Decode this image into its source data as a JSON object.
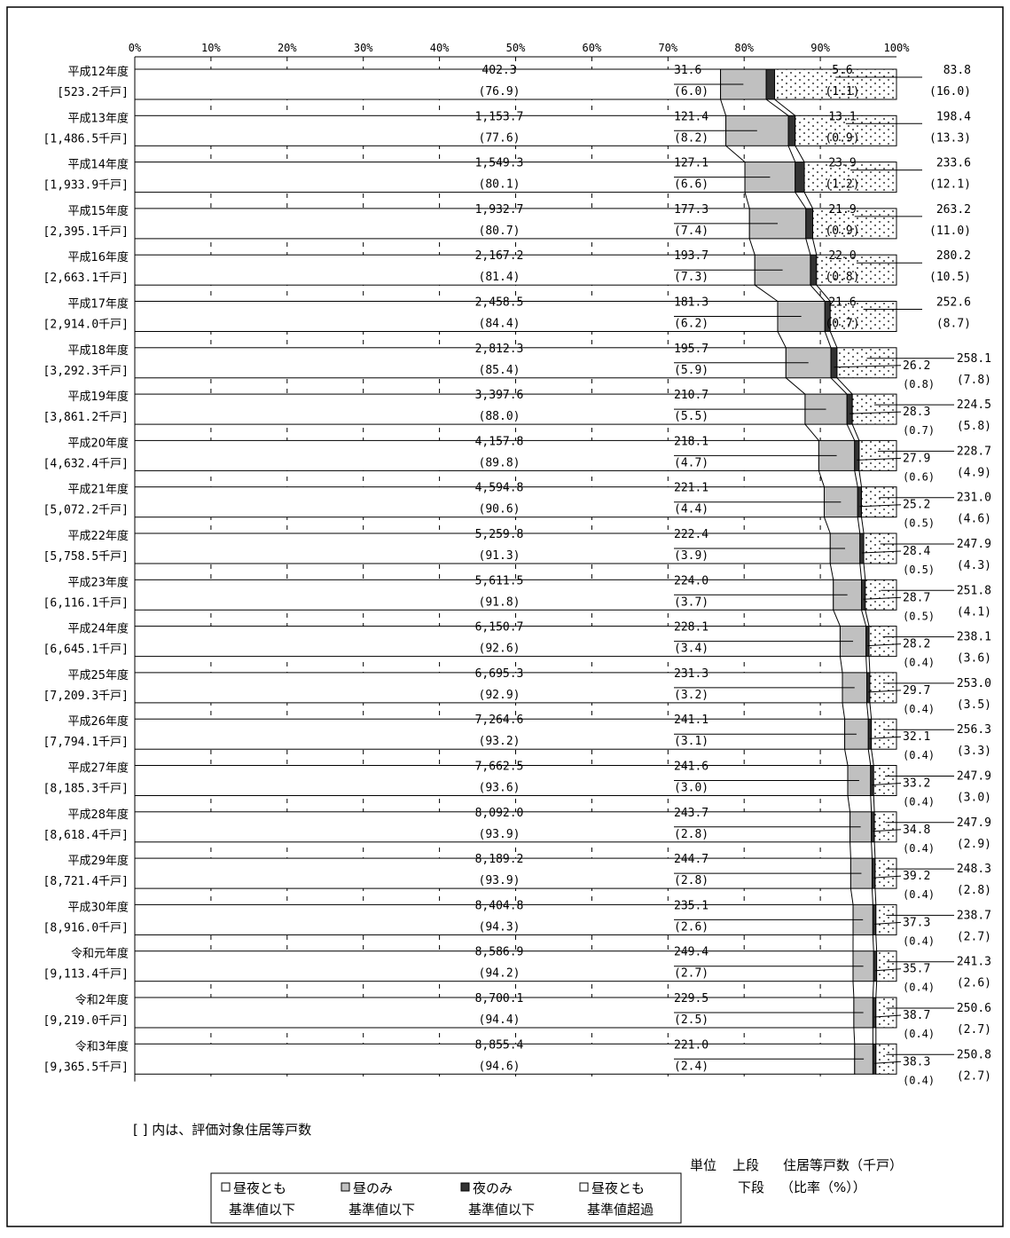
{
  "chart_data": {
    "type": "bar",
    "subtype": "stacked-horizontal-100-percent",
    "x_ticks": [
      "0%",
      "10%",
      "20%",
      "30%",
      "40%",
      "50%",
      "60%",
      "70%",
      "80%",
      "90%",
      "100%"
    ],
    "xlim": [
      0,
      100
    ],
    "series": [
      {
        "name": "昼夜とも基準値以下",
        "legend_line1": "昼夜とも",
        "legend_line2": "基準値以下",
        "fill": "#ffffff",
        "pattern": "none"
      },
      {
        "name": "昼のみ基準値以下",
        "legend_line1": "昼のみ",
        "legend_line2": "基準値以下",
        "fill": "#c0c0c0",
        "pattern": "none"
      },
      {
        "name": "夜のみ基準値以下",
        "legend_line1": "夜のみ",
        "legend_line2": "基準値以下",
        "fill": "#333333",
        "pattern": "none"
      },
      {
        "name": "昼夜とも基準値超過",
        "legend_line1": "昼夜とも",
        "legend_line2": "基準値超過",
        "fill": "#ffffff",
        "pattern": "dots"
      }
    ],
    "categories": [
      {
        "year": "平成12年度",
        "total": "[523.2千戸]",
        "values": [
          "402.3",
          "31.6",
          "5.6",
          "83.8"
        ],
        "pcts": [
          "(76.9)",
          "(6.0)",
          "(1.1)",
          "(16.0)"
        ]
      },
      {
        "year": "平成13年度",
        "total": "[1,486.5千戸]",
        "values": [
          "1,153.7",
          "121.4",
          "13.1",
          "198.4"
        ],
        "pcts": [
          "(77.6)",
          "(8.2)",
          "(0.9)",
          "(13.3)"
        ]
      },
      {
        "year": "平成14年度",
        "total": "[1,933.9千戸]",
        "values": [
          "1,549.3",
          "127.1",
          "23.9",
          "233.6"
        ],
        "pcts": [
          "(80.1)",
          "(6.6)",
          "(1.2)",
          "(12.1)"
        ]
      },
      {
        "year": "平成15年度",
        "total": "[2,395.1千戸]",
        "values": [
          "1,932.7",
          "177.3",
          "21.9",
          "263.2"
        ],
        "pcts": [
          "(80.7)",
          "(7.4)",
          "(0.9)",
          "(11.0)"
        ]
      },
      {
        "year": "平成16年度",
        "total": "[2,663.1千戸]",
        "values": [
          "2,167.2",
          "193.7",
          "22.0",
          "280.2"
        ],
        "pcts": [
          "(81.4)",
          "(7.3)",
          "(0.8)",
          "(10.5)"
        ]
      },
      {
        "year": "平成17年度",
        "total": "[2,914.0千戸]",
        "values": [
          "2,458.5",
          "181.3",
          "21.6",
          "252.6"
        ],
        "pcts": [
          "(84.4)",
          "(6.2)",
          "(0.7)",
          "(8.7)"
        ]
      },
      {
        "year": "平成18年度",
        "total": "[3,292.3千戸]",
        "values": [
          "2,812.3",
          "195.7",
          "26.2",
          "258.1"
        ],
        "pcts": [
          "(85.4)",
          "(5.9)",
          "(0.8)",
          "(7.8)"
        ]
      },
      {
        "year": "平成19年度",
        "total": "[3,861.2千戸]",
        "values": [
          "3,397.6",
          "210.7",
          "28.3",
          "224.5"
        ],
        "pcts": [
          "(88.0)",
          "(5.5)",
          "(0.7)",
          "(5.8)"
        ]
      },
      {
        "year": "平成20年度",
        "total": "[4,632.4千戸]",
        "values": [
          "4,157.8",
          "218.1",
          "27.9",
          "228.7"
        ],
        "pcts": [
          "(89.8)",
          "(4.7)",
          "(0.6)",
          "(4.9)"
        ]
      },
      {
        "year": "平成21年度",
        "total": "[5,072.2千戸]",
        "values": [
          "4,594.8",
          "221.1",
          "25.2",
          "231.0"
        ],
        "pcts": [
          "(90.6)",
          "(4.4)",
          "(0.5)",
          "(4.6)"
        ]
      },
      {
        "year": "平成22年度",
        "total": "[5,758.5千戸]",
        "values": [
          "5,259.8",
          "222.4",
          "28.4",
          "247.9"
        ],
        "pcts": [
          "(91.3)",
          "(3.9)",
          "(0.5)",
          "(4.3)"
        ]
      },
      {
        "year": "平成23年度",
        "total": "[6,116.1千戸]",
        "values": [
          "5,611.5",
          "224.0",
          "28.7",
          "251.8"
        ],
        "pcts": [
          "(91.8)",
          "(3.7)",
          "(0.5)",
          "(4.1)"
        ]
      },
      {
        "year": "平成24年度",
        "total": "[6,645.1千戸]",
        "values": [
          "6,150.7",
          "228.1",
          "28.2",
          "238.1"
        ],
        "pcts": [
          "(92.6)",
          "(3.4)",
          "(0.4)",
          "(3.6)"
        ]
      },
      {
        "year": "平成25年度",
        "total": "[7,209.3千戸]",
        "values": [
          "6,695.3",
          "231.3",
          "29.7",
          "253.0"
        ],
        "pcts": [
          "(92.9)",
          "(3.2)",
          "(0.4)",
          "(3.5)"
        ]
      },
      {
        "year": "平成26年度",
        "total": "[7,794.1千戸]",
        "values": [
          "7,264.6",
          "241.1",
          "32.1",
          "256.3"
        ],
        "pcts": [
          "(93.2)",
          "(3.1)",
          "(0.4)",
          "(3.3)"
        ]
      },
      {
        "year": "平成27年度",
        "total": "[8,185.3千戸]",
        "values": [
          "7,662.5",
          "241.6",
          "33.2",
          "247.9"
        ],
        "pcts": [
          "(93.6)",
          "(3.0)",
          "(0.4)",
          "(3.0)"
        ]
      },
      {
        "year": "平成28年度",
        "total": "[8,618.4千戸]",
        "values": [
          "8,092.0",
          "243.7",
          "34.8",
          "247.9"
        ],
        "pcts": [
          "(93.9)",
          "(2.8)",
          "(0.4)",
          "(2.9)"
        ]
      },
      {
        "year": "平成29年度",
        "total": "[8,721.4千戸]",
        "values": [
          "8,189.2",
          "244.7",
          "39.2",
          "248.3"
        ],
        "pcts": [
          "(93.9)",
          "(2.8)",
          "(0.4)",
          "(2.8)"
        ]
      },
      {
        "year": "平成30年度",
        "total": "[8,916.0千戸]",
        "values": [
          "8,404.8",
          "235.1",
          "37.3",
          "238.7"
        ],
        "pcts": [
          "(94.3)",
          "(2.6)",
          "(0.4)",
          "(2.7)"
        ]
      },
      {
        "year": "令和元年度",
        "total": "[9,113.4千戸]",
        "values": [
          "8,586.9",
          "249.4",
          "35.7",
          "241.3"
        ],
        "pcts": [
          "(94.2)",
          "(2.7)",
          "(0.4)",
          "(2.6)"
        ]
      },
      {
        "year": "令和2年度",
        "total": "[9,219.0千戸]",
        "values": [
          "8,700.1",
          "229.5",
          "38.7",
          "250.6"
        ],
        "pcts": [
          "(94.4)",
          "(2.5)",
          "(0.4)",
          "(2.7)"
        ]
      },
      {
        "year": "令和3年度",
        "total": "[9,365.5千戸]",
        "values": [
          "8,855.4",
          "221.0",
          "38.3",
          "250.8"
        ],
        "pcts": [
          "(94.6)",
          "(2.4)",
          "(0.4)",
          "(2.7)"
        ]
      }
    ],
    "note": "[ ] 内は、評価対象住居等戸数",
    "legend_placement": "bottom",
    "units": {
      "label": "単位",
      "upper_label": "上段",
      "upper_text": "住居等戸数（千戸）",
      "lower_label": "下段",
      "lower_text": "（比率（%））"
    }
  }
}
